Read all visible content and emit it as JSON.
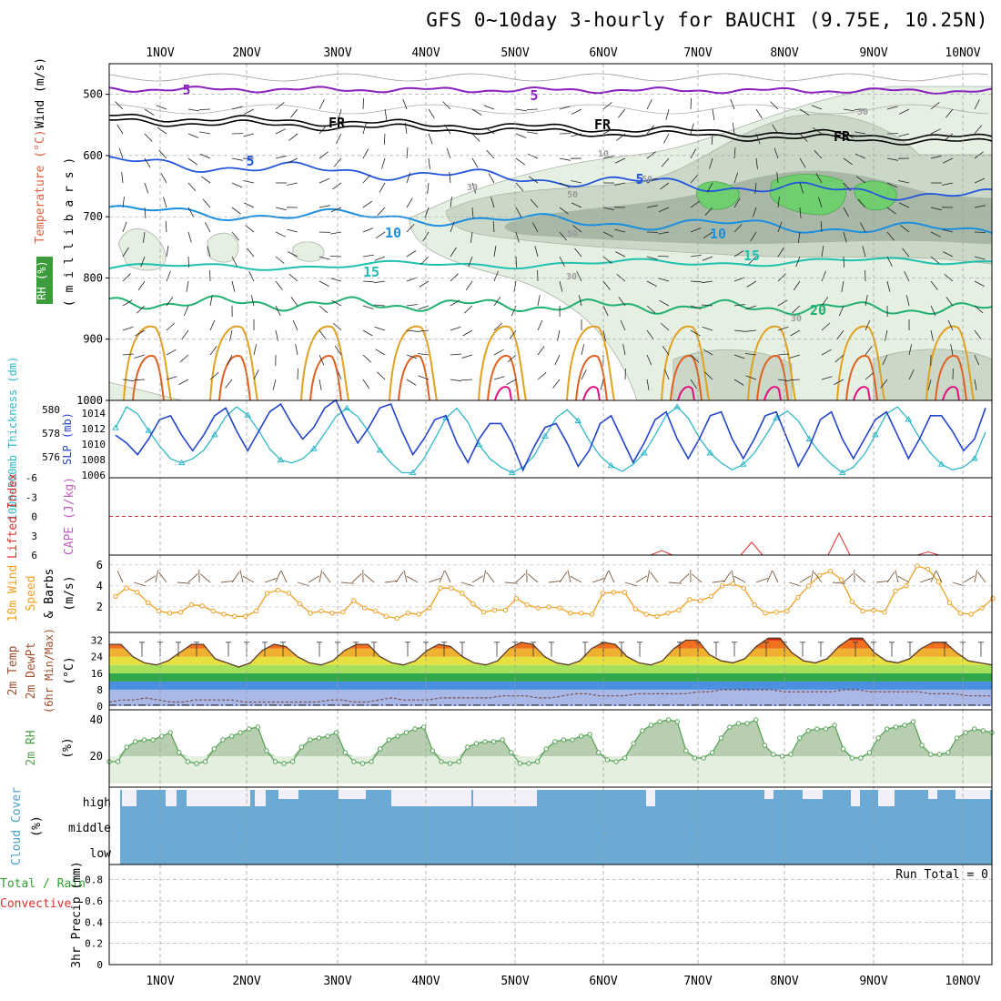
{
  "title": "GFS 0~10day 3-hourly for BAUCHI (9.75E, 10.25N)",
  "date_labels": [
    "1NOV",
    "2NOV",
    "3NOV",
    "4NOV",
    "5NOV",
    "6NOV",
    "7NOV",
    "8NOV",
    "9NOV",
    "10NOV"
  ],
  "colors": {
    "rh_light": "#e6f0e2",
    "rh_mid": "#cbd8c7",
    "rh_dark": "#a9b8a6",
    "rh_green": "#6fcf6f",
    "temp_purple": "#8a1fc0",
    "temp_blue": "#2255dd",
    "temp_lightblue": "#1a8fe0",
    "temp_teal": "#20c0b0",
    "temp_green": "#20b070",
    "temp_orange": "#e0a020",
    "temp_darkorange": "#e06020",
    "temp_magenta": "#e01080",
    "slp": "#2244cc",
    "thickness": "#30b8c8",
    "wind10m": "#f0a020",
    "lifted_index": "#e03030",
    "rh2m": "#50a050",
    "cloud": "#6aaad4"
  },
  "panels": {
    "upper_air": {
      "ylabel_wind": "Wind (m/s)",
      "ylabel_temp": "Temperature (°C)",
      "ylabel_rh": "RH (%)",
      "ylabel_units": "( m i l l i b a r s )",
      "yticks": [
        "500",
        "600",
        "700",
        "800",
        "900",
        "1000"
      ],
      "contour_labels": [
        "5",
        "5",
        "FR",
        "FR",
        "FR",
        "5",
        "5",
        "10",
        "10",
        "15",
        "15",
        "20",
        "30",
        "30",
        "50",
        "50",
        "50",
        "30",
        "10",
        "30"
      ]
    },
    "slp_thickness": {
      "ylabel_thk": "1000~500mb Thickness (dm)",
      "ylabel_slp": "SLP (mb)",
      "thk_ticks": [
        "580",
        "578",
        "576"
      ],
      "slp_ticks": [
        "1014",
        "1012",
        "1010",
        "1008",
        "1006"
      ]
    },
    "cape_li": {
      "ylabel_li": "Lifted Index",
      "ylabel_cape": "CAPE (J/kg)",
      "yticks": [
        "-6",
        "-3",
        "0",
        "3",
        "6"
      ]
    },
    "wind10m": {
      "ylabel_a": "10m Wind",
      "ylabel_b": "Speed",
      "ylabel_c": "& Barbs",
      "ylabel_d": "(m/s)",
      "yticks": [
        "6",
        "4",
        "2"
      ]
    },
    "temp2m": {
      "ylabel_a": "2m Temp",
      "ylabel_b": "2m DewPt",
      "ylabel_c": "(6hr Min/Max)",
      "ylabel_d": "(°C)",
      "yticks": [
        "32",
        "24",
        "16",
        "8",
        "0"
      ]
    },
    "rh2m": {
      "ylabel_a": "2m RH",
      "ylabel_b": "(%)",
      "yticks": [
        "40",
        "20"
      ]
    },
    "cloud": {
      "ylabel_a": "Cloud Cover",
      "ylabel_b": "(%)",
      "levels": [
        "high",
        "middle",
        "low"
      ]
    },
    "precip": {
      "ylabel_a": "Total / Rain",
      "ylabel_b": "Convective",
      "ylabel_c": "3hr Precip (mm)",
      "yticks": [
        "0.8",
        "0.6",
        "0.4",
        "0.2",
        "0"
      ],
      "run_total": "Run Total = 0"
    }
  },
  "chart_data": [
    {
      "type": "line",
      "panel": "slp_thickness",
      "x_unit": "forecast hour (3-hourly)",
      "x_start": 0,
      "x_step": 3,
      "series": [
        {
          "name": "SLP (mb)",
          "values": [
            1011,
            1010,
            1008.5,
            1010.5,
            1013,
            1013.5,
            1011,
            1009,
            1011,
            1013.5,
            1014.5,
            1011.5,
            1009,
            1011.5,
            1014,
            1015,
            1012.5,
            1010.5,
            1012,
            1014.5,
            1015.5,
            1012.5,
            1010,
            1012,
            1014.5,
            1015,
            1011.5,
            1008.5,
            1010.5,
            1013,
            1013.5,
            1010,
            1007.5,
            1010.5,
            1012.5,
            1012.5,
            1010,
            1006.5,
            1009.5,
            1012,
            1012.5,
            1010,
            1007,
            1009,
            1012.5,
            1013.5,
            1010.5,
            1007.5,
            1010,
            1013,
            1014,
            1010.5,
            1008,
            1010.5,
            1013.5,
            1014,
            1010.5,
            1008,
            1010.5,
            1013.5,
            1014,
            1010.5,
            1007,
            1009.5,
            1013,
            1014,
            1010.5,
            1008,
            1010.5,
            1013,
            1014,
            1011,
            1008,
            1010.5,
            1013.5,
            1013.5,
            1011.5,
            1009,
            1010.5,
            1014.5
          ],
          "ylim": [
            1006,
            1015
          ]
        },
        {
          "name": "1000-500mb Thickness (dm)",
          "values": [
            578.8,
            580.3,
            579.8,
            578.6,
            577.5,
            576.6,
            576.3,
            576.6,
            577.2,
            578.3,
            579.6,
            580.3,
            579.7,
            578.6,
            577.3,
            576.5,
            576.3,
            576.6,
            577.3,
            578.4,
            579.6,
            580.2,
            579.6,
            578.5,
            577.2,
            576.3,
            575.6,
            575.6,
            576.6,
            578.0,
            579.5,
            580.2,
            579.2,
            577.6,
            576.6,
            576.0,
            575.6,
            576.0,
            576.8,
            578.2,
            579.5,
            580.1,
            579.3,
            577.9,
            576.8,
            576.1,
            575.7,
            576.2,
            577.0,
            578.3,
            579.7,
            580.3,
            579.5,
            578.1,
            577.0,
            576.3,
            575.8,
            576.2,
            577.0,
            578.2,
            579.5,
            580.0,
            579.3,
            578.0,
            577.0,
            576.2,
            575.6,
            576.0,
            576.9,
            578.3,
            579.8,
            580.3,
            579.4,
            578.1,
            577.0,
            576.2,
            575.8,
            576.0,
            576.6,
            578.5
          ],
          "ylim": [
            575.5,
            580.5
          ]
        }
      ]
    },
    {
      "type": "line",
      "panel": "cape_li",
      "series": [
        {
          "name": "Lifted Index",
          "peaks": [
            {
              "day": "6NOV",
              "value": 5.3
            },
            {
              "day": "7NOV",
              "value": 4.0
            },
            {
              "day": "8NOV",
              "value": 2.6
            },
            {
              "day": "9NOV",
              "value": 5.5
            }
          ]
        }
      ],
      "ylim": [
        6,
        -6
      ]
    },
    {
      "type": "line",
      "panel": "wind10m",
      "series": [
        {
          "name": "10m Wind Speed (m/s)",
          "values": [
            3.0,
            3.8,
            3.4,
            2.4,
            1.6,
            1.4,
            1.5,
            2.2,
            2.1,
            1.6,
            1.3,
            1.1,
            1.1,
            1.6,
            3.3,
            3.6,
            3.3,
            2.3,
            1.4,
            1.6,
            1.4,
            1.5,
            2.6,
            1.9,
            1.6,
            1.1,
            0.9,
            1.4,
            1.3,
            1.9,
            3.8,
            3.8,
            3.3,
            2.3,
            1.5,
            1.7,
            1.7,
            2.8,
            2.2,
            1.9,
            2.0,
            1.9,
            1.4,
            1.4,
            1.3,
            3.3,
            3.4,
            3.4,
            1.8,
            1.3,
            1.1,
            1.4,
            1.7,
            2.7,
            2.6,
            3.0,
            4.0,
            4.2,
            3.8,
            2.2,
            1.4,
            1.5,
            1.6,
            2.9,
            4.0,
            5.0,
            5.4,
            4.6,
            2.5,
            1.6,
            1.7,
            1.5,
            3.5,
            4.0,
            5.9,
            5.6,
            4.4,
            2.4,
            1.4,
            1.3,
            1.9,
            2.8
          ],
          "ylim": [
            0,
            6.5
          ]
        }
      ]
    },
    {
      "type": "area",
      "panel": "temp2m",
      "series": [
        {
          "name": "2m Temp (°C)",
          "values": [
            30,
            30,
            24,
            21,
            20,
            22,
            26,
            30,
            30,
            23,
            21,
            19,
            21,
            27,
            30,
            29,
            24,
            21,
            20,
            22,
            27,
            30,
            30,
            24,
            21,
            20,
            22,
            27,
            30,
            29,
            24,
            21,
            20,
            22,
            28,
            31,
            30,
            24,
            21,
            20,
            22,
            28,
            31,
            30,
            24,
            21,
            20,
            22,
            28,
            32,
            32,
            25,
            22,
            21,
            23,
            29,
            33,
            33,
            26,
            22,
            21,
            23,
            29,
            33,
            33,
            26,
            22,
            21,
            23,
            28,
            31,
            31,
            26,
            22,
            21,
            20
          ],
          "ylim": [
            0,
            34
          ]
        },
        {
          "name": "2m DewPt (°C)",
          "values": [
            2,
            3,
            3,
            4,
            3,
            2,
            2,
            3,
            3,
            3,
            3,
            2,
            2,
            2,
            2,
            2,
            2,
            2,
            3,
            3,
            2,
            2,
            3,
            4,
            3,
            3,
            3,
            4,
            4,
            4,
            4,
            4,
            5,
            5,
            5,
            4,
            4,
            5,
            6,
            6,
            5,
            5,
            5,
            6,
            6,
            6,
            6,
            6,
            7,
            7,
            8,
            8,
            8,
            8,
            8,
            7,
            7,
            7,
            7,
            7,
            8,
            8,
            7,
            7,
            7,
            7,
            7,
            6,
            6,
            6,
            5,
            5,
            5
          ],
          "ylim": [
            0,
            34
          ]
        }
      ]
    },
    {
      "type": "area",
      "panel": "rh2m",
      "series": [
        {
          "name": "2m RH (%)",
          "values": [
            17,
            17,
            25,
            28,
            29,
            29,
            31,
            33,
            22,
            17,
            16,
            17,
            24,
            29,
            31,
            33,
            35,
            36,
            23,
            17,
            16,
            17,
            25,
            29,
            30,
            31,
            33,
            22,
            17,
            16,
            17,
            24,
            29,
            31,
            33,
            35,
            36,
            23,
            17,
            16,
            17,
            25,
            27,
            28,
            28,
            29,
            22,
            16,
            16,
            17,
            24,
            28,
            29,
            29,
            31,
            32,
            22,
            18,
            17,
            19,
            27,
            34,
            37,
            39,
            40,
            39,
            23,
            19,
            19,
            22,
            30,
            36,
            38,
            38,
            40,
            26,
            21,
            20,
            21,
            30,
            34,
            35,
            35,
            37,
            24,
            19,
            19,
            22,
            30,
            35,
            36,
            37,
            39,
            26,
            21,
            21,
            22,
            30,
            33,
            35,
            34,
            33
          ],
          "ylim": [
            5,
            43
          ]
        }
      ]
    },
    {
      "type": "bar",
      "panel": "cloud",
      "series": [
        {
          "name": "Cloud Cover high (%)",
          "note": "mostly full coverage with intermittent gaps"
        }
      ],
      "ylim": [
        0,
        100
      ]
    },
    {
      "type": "bar",
      "panel": "precip",
      "series": [
        {
          "name": "3hr Precip (mm)",
          "values": []
        }
      ],
      "ylim": [
        0,
        0.9
      ]
    }
  ]
}
